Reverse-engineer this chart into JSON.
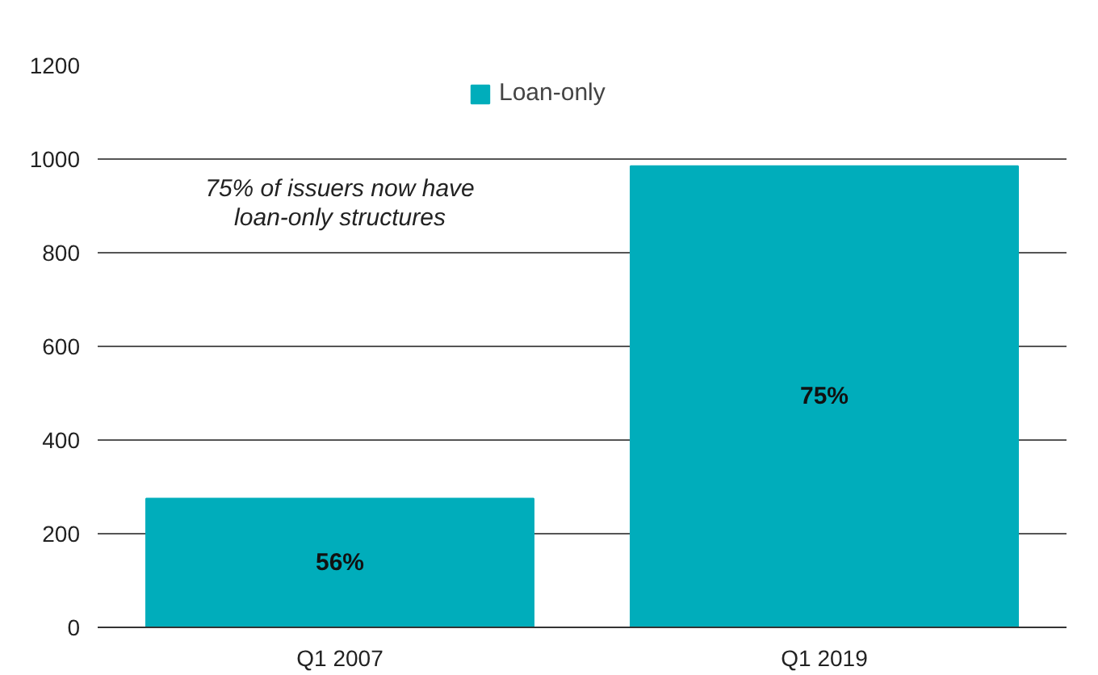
{
  "chart_data": {
    "type": "bar",
    "categories": [
      "Q1 2007",
      "Q1 2019"
    ],
    "series": [
      {
        "name": "Loan-only",
        "color": "#00adbb",
        "values": [
          275,
          985
        ]
      }
    ],
    "value_labels": [
      "56%",
      "75%"
    ],
    "annotations": [
      "75% of issuers now have\nloan-only structures"
    ],
    "ylim": [
      0,
      1200
    ],
    "yticks": [
      0,
      200,
      400,
      600,
      800,
      1000,
      1200
    ],
    "grid": "y",
    "legend": "top"
  }
}
